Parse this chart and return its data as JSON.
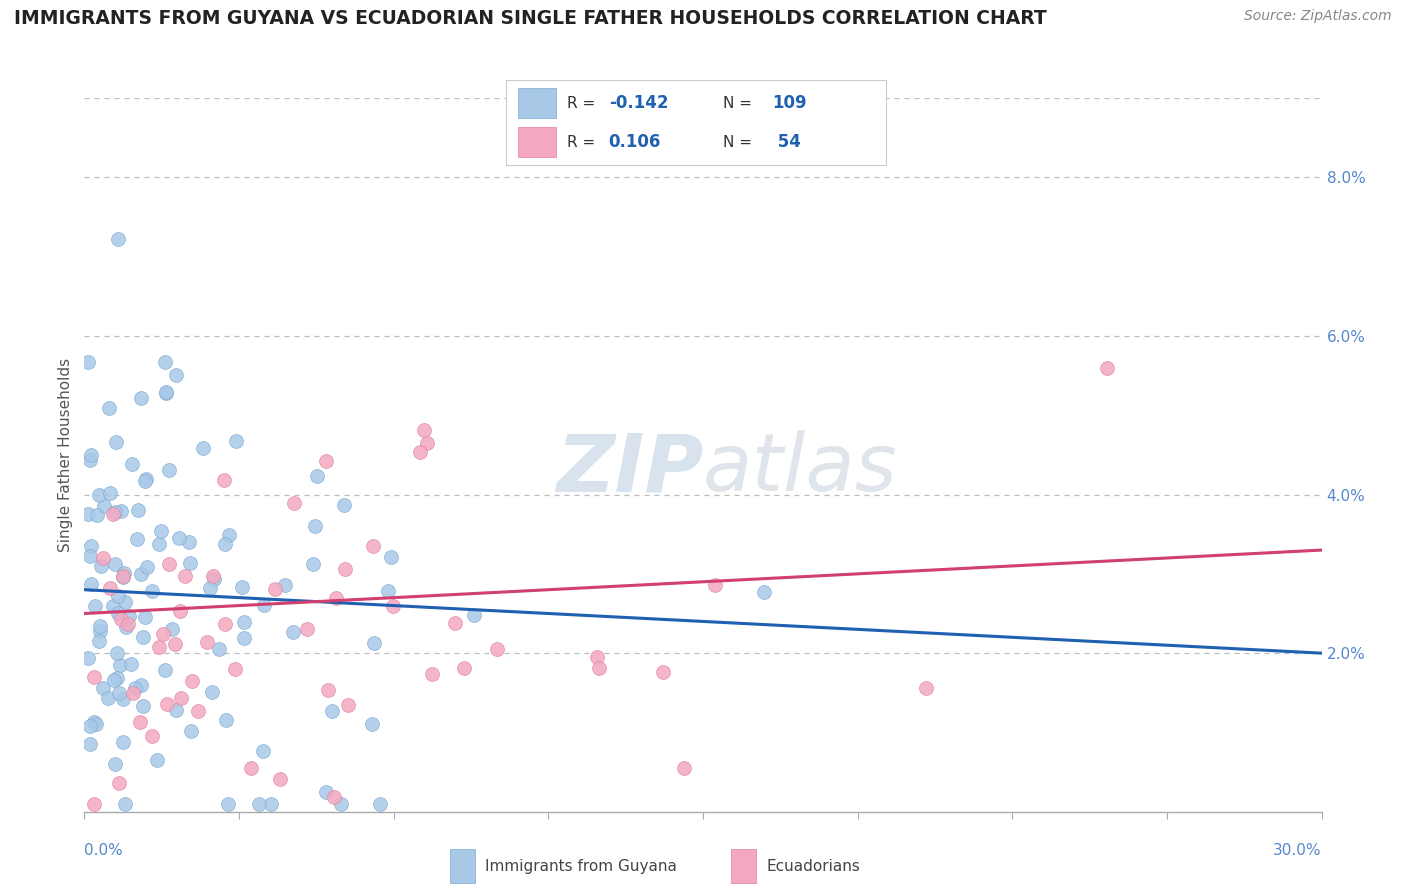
{
  "title": "IMMIGRANTS FROM GUYANA VS ECUADORIAN SINGLE FATHER HOUSEHOLDS CORRELATION CHART",
  "source": "Source: ZipAtlas.com",
  "ylabel": "Single Father Households",
  "right_yticks": [
    "2.0%",
    "4.0%",
    "6.0%",
    "8.0%"
  ],
  "right_ytick_vals": [
    0.02,
    0.04,
    0.06,
    0.08
  ],
  "legend1_R": -0.142,
  "legend1_N": 109,
  "legend2_R": 0.106,
  "legend2_N": 54,
  "blue_color": "#a8c8e8",
  "pink_color": "#f4a8c0",
  "blue_line_color": "#2060b0",
  "pink_line_color": "#d04070",
  "blue_dot_edge": "#7aaad0",
  "pink_dot_edge": "#e080a0",
  "watermark_color": "#d0dce8",
  "xlim": [
    0.0,
    0.3
  ],
  "ylim": [
    -0.005,
    0.09
  ],
  "ylim_plot": [
    0.0,
    0.09
  ]
}
